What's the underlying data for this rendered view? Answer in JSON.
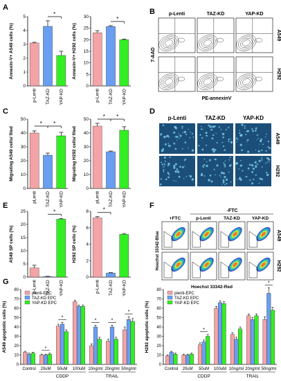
{
  "colors": {
    "plenti": "#f4a3a6",
    "taz": "#6a9ef2",
    "yap": "#33ee22",
    "axis": "#000000",
    "flow_bg": "#ffffff",
    "micro_bg": "#1b4f7a"
  },
  "panels": {
    "A": "A",
    "B": "B",
    "C": "C",
    "D": "D",
    "E": "E",
    "F": "F",
    "G": "G"
  },
  "common": {
    "categories": [
      "p-Lenti",
      "TAZ-KD",
      "YAP-KD"
    ],
    "cat_labels_c": [
      "pLenti",
      "TAZ-KD",
      "YAP-KD"
    ],
    "star": "*"
  },
  "chart_data": [
    {
      "id": "A1",
      "type": "bar",
      "categories": [
        "p-Lenti",
        "TAZ-KD",
        "YAP-KD"
      ],
      "values": [
        3.1,
        4.3,
        2.2
      ],
      "errors": [
        0.05,
        0.4,
        0.3
      ],
      "ylabel": "Annexin-V+ A549 cells (%)",
      "ylim": [
        0,
        5
      ],
      "yticks": [
        0,
        1,
        2,
        3,
        4,
        5
      ],
      "sig": [
        {
          "from": 1,
          "to": 2,
          "label": "*"
        }
      ]
    },
    {
      "id": "A2",
      "type": "bar",
      "categories": [
        "p-Lenti",
        "TAZ-KD",
        "YAP-KD"
      ],
      "values": [
        23,
        25.7,
        20
      ],
      "errors": [
        0.8,
        0.4,
        0.3
      ],
      "ylabel": "Annexin-V+ H292 cells (%)",
      "ylim": [
        0,
        30
      ],
      "yticks": [
        0,
        5,
        10,
        15,
        20,
        25,
        30
      ],
      "sig": [
        {
          "from": 1,
          "to": 2,
          "label": "*"
        }
      ]
    },
    {
      "id": "C1",
      "type": "bar",
      "categories": [
        "pLenti",
        "TAZ-KD",
        "YAP-KD"
      ],
      "values": [
        40,
        24,
        38
      ],
      "errors": [
        1.5,
        1.5,
        2.5
      ],
      "ylabel": "Migrating A549 cells/ filed",
      "ylim": [
        0,
        50
      ],
      "yticks": [
        0,
        10,
        20,
        30,
        40,
        50
      ],
      "sig": [
        {
          "from": 0,
          "to": 1,
          "label": "*"
        },
        {
          "from": 1,
          "to": 2,
          "label": "*"
        }
      ]
    },
    {
      "id": "C2",
      "type": "bar",
      "categories": [
        "pLenti",
        "TAZ-KD",
        "YAP-KD"
      ],
      "values": [
        45,
        26.5,
        42
      ],
      "errors": [
        2,
        0.5,
        2.5
      ],
      "ylabel": "Migrating H292 cells/ filed",
      "ylim": [
        0,
        50
      ],
      "yticks": [
        0,
        10,
        20,
        30,
        40,
        50
      ],
      "sig": [
        {
          "from": 0,
          "to": 1,
          "label": "*"
        },
        {
          "from": 1,
          "to": 2,
          "label": "*"
        }
      ]
    },
    {
      "id": "E1",
      "type": "bar",
      "categories": [
        "p-Lenti",
        "TAZ-KD",
        "YAP-KD"
      ],
      "values": [
        3.5,
        0.2,
        22
      ],
      "errors": [
        1.0,
        0.1,
        0.3
      ],
      "ylabel": "A549 SP cells (%)",
      "ylim": [
        0,
        25
      ],
      "yticks": [
        0,
        5,
        10,
        15,
        20,
        25
      ],
      "sig": [
        {
          "from": 1,
          "to": 2,
          "label": "*"
        }
      ]
    },
    {
      "id": "E2",
      "type": "bar",
      "categories": [
        "p-Lenti",
        "TAZ-KD",
        "YAP-KD"
      ],
      "values": [
        7.2,
        0.5,
        5.2
      ],
      "errors": [
        0.15,
        0.05,
        0.1
      ],
      "ylabel": "H292 SP cells (%)",
      "ylim": [
        0,
        8
      ],
      "yticks": [
        0,
        2,
        4,
        6,
        8
      ],
      "sig": [
        {
          "from": 0,
          "to": 1,
          "label": "*"
        }
      ]
    },
    {
      "id": "G1",
      "type": "bar",
      "ylabel": "A549 apoptotic cells (%)",
      "ylim": [
        0,
        80
      ],
      "yticks": [
        0,
        10,
        20,
        30,
        40,
        50,
        60,
        70,
        80
      ],
      "categories": [
        "Control",
        "20uM",
        "50uM",
        "100uM",
        "10ng/ml",
        "20ng/ml",
        "50ng/ml"
      ],
      "groups": [
        {
          "label": "CDDP",
          "from": 1,
          "to": 3
        },
        {
          "label": "TRAIL",
          "from": 4,
          "to": 6
        }
      ],
      "series": [
        {
          "name": "plenti-EPC",
          "values": [
            13,
            10,
            41,
            67,
            20,
            25,
            37
          ],
          "errors": [
            1,
            1,
            2,
            1.5,
            2,
            2,
            3
          ]
        },
        {
          "name": "TAZ-KD EPC",
          "values": [
            11,
            10,
            43,
            62,
            40,
            40,
            48
          ],
          "errors": [
            1,
            1,
            2,
            1.5,
            2,
            2,
            3
          ]
        },
        {
          "name": "YAP-KD EPC",
          "values": [
            12,
            11,
            35,
            62,
            27,
            27,
            46
          ],
          "errors": [
            1,
            1,
            2,
            1.5,
            2,
            2,
            3
          ]
        }
      ],
      "sig": [
        {
          "cat": 1,
          "label": "*"
        },
        {
          "cat": 2,
          "label": "*"
        },
        {
          "cat": 4,
          "label": "*"
        },
        {
          "cat": 5,
          "label": "*"
        },
        {
          "cat": 6,
          "label": "*"
        }
      ],
      "legend": "top-left"
    },
    {
      "id": "G2",
      "type": "bar",
      "ylabel": "H292 apoptotic cells (%)",
      "ylim": [
        0,
        80
      ],
      "yticks": [
        0,
        10,
        20,
        30,
        40,
        50,
        60,
        70,
        80
      ],
      "categories": [
        "Control",
        "20uM",
        "50uM",
        "100uM",
        "10ng/ml",
        "20ng/ml",
        "50ng/ml"
      ],
      "groups": [
        {
          "label": "CDDP",
          "from": 1,
          "to": 3
        },
        {
          "label": "TRAIL",
          "from": 4,
          "to": 6
        }
      ],
      "series": [
        {
          "name": "plenti-EPC",
          "values": [
            9,
            10,
            21,
            60,
            32,
            52,
            48
          ],
          "errors": [
            1,
            1,
            2,
            2,
            2,
            2,
            3
          ]
        },
        {
          "name": "TAZ-KD EPC",
          "values": [
            13,
            10,
            24,
            66,
            27,
            48,
            76
          ],
          "errors": [
            1,
            1,
            2,
            2,
            2,
            2,
            6
          ]
        },
        {
          "name": "YAP-KD EPC",
          "values": [
            11,
            11,
            30,
            65,
            38,
            52,
            58
          ],
          "errors": [
            1,
            1,
            2,
            2,
            2,
            2,
            3
          ]
        }
      ],
      "sig": [
        {
          "cat": 2,
          "label": "*"
        },
        {
          "cat": 6,
          "label": "*"
        }
      ],
      "legend": "top-left"
    }
  ],
  "flowB": {
    "cols": [
      "p-Lenti",
      "TAZ-KD",
      "YAP-KD"
    ],
    "rows": [
      "A549",
      "H292"
    ],
    "ylabel": "7-AAD",
    "xlabel": "PE-annexinV"
  },
  "microD": {
    "cols": [
      "p-Lenti",
      "TAZ-KD",
      "YAP-KD"
    ],
    "rows": [
      "A549",
      "H292"
    ]
  },
  "flowF": {
    "cols": [
      "+FTC",
      "p-Lenti",
      "TAZ-KD",
      "YAP-KD"
    ],
    "group": "-FTC",
    "rows": [
      "A549",
      "H292"
    ],
    "ylabel": "Hoechst 33342-Blue",
    "xlabel": "Hoechst 33342-Red"
  }
}
